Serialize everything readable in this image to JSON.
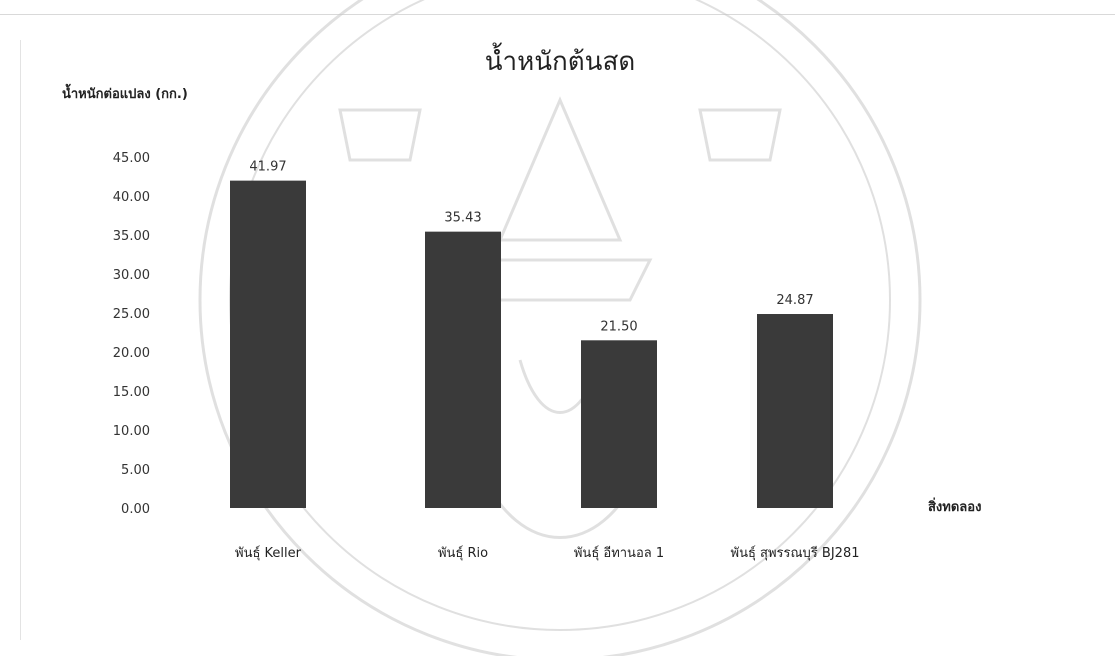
{
  "chart_data": {
    "type": "bar",
    "title": "น้ำหนักต้นสด",
    "ylabel": "น้ำหนักต่อแปลง (กก.)",
    "xlabel": "สิ่งทดลอง",
    "categories": [
      "พันธุ์ Keller",
      "พันธุ์ Rio",
      "พันธุ์ อีทานอล 1",
      "พันธุ์ สุพรรณบุรี BJ281"
    ],
    "values": [
      41.97,
      35.43,
      21.5,
      24.87
    ],
    "value_labels": [
      "41.97",
      "35.43",
      "21.50",
      "24.87"
    ],
    "yticks": [
      "0.00",
      "5.00",
      "10.00",
      "15.00",
      "20.00",
      "25.00",
      "30.00",
      "35.00",
      "40.00",
      "45.00"
    ],
    "ylim": [
      0,
      45
    ],
    "bar_color": "#3a3a3a",
    "grid": false,
    "legend": "none"
  }
}
